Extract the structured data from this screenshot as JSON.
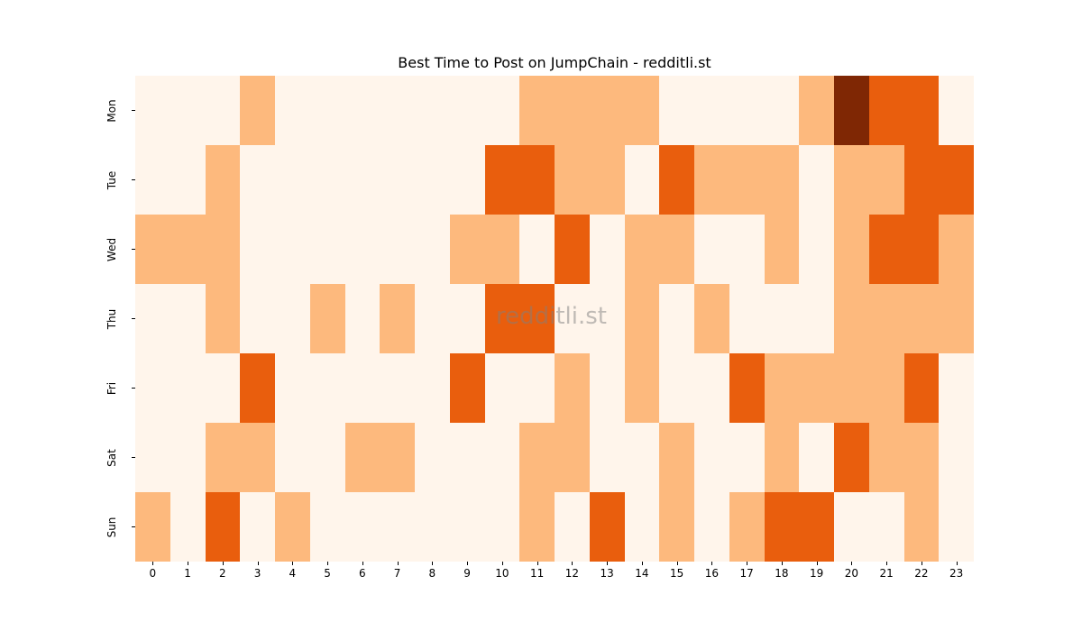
{
  "chart_data": {
    "type": "heatmap",
    "title": "Best Time to Post on JumpChain - redditli.st",
    "xlabel": "",
    "ylabel": "",
    "x": [
      "0",
      "1",
      "2",
      "3",
      "4",
      "5",
      "6",
      "7",
      "8",
      "9",
      "10",
      "11",
      "12",
      "13",
      "14",
      "15",
      "16",
      "17",
      "18",
      "19",
      "20",
      "21",
      "22",
      "23"
    ],
    "y": [
      "Mon",
      "Tue",
      "Wed",
      "Thu",
      "Fri",
      "Sat",
      "Sun"
    ],
    "colormap": "Oranges",
    "level_colors": [
      "#fff5eb",
      "#fdb97d",
      "#e95e0d",
      "#7f2704"
    ],
    "values": [
      [
        0,
        0,
        0,
        1,
        0,
        0,
        0,
        0,
        0,
        0,
        0,
        1,
        1,
        1,
        1,
        0,
        0,
        0,
        0,
        1,
        3,
        2,
        2,
        0
      ],
      [
        0,
        0,
        1,
        0,
        0,
        0,
        0,
        0,
        0,
        0,
        2,
        2,
        1,
        1,
        0,
        2,
        1,
        1,
        1,
        0,
        1,
        1,
        2,
        2
      ],
      [
        1,
        1,
        1,
        0,
        0,
        0,
        0,
        0,
        0,
        1,
        1,
        0,
        2,
        0,
        1,
        1,
        0,
        0,
        1,
        0,
        1,
        2,
        2,
        1
      ],
      [
        0,
        0,
        1,
        0,
        0,
        1,
        0,
        1,
        0,
        0,
        2,
        2,
        0,
        0,
        1,
        0,
        1,
        0,
        0,
        0,
        1,
        1,
        1,
        1
      ],
      [
        0,
        0,
        0,
        2,
        0,
        0,
        0,
        0,
        0,
        2,
        0,
        0,
        1,
        0,
        1,
        0,
        0,
        2,
        1,
        1,
        1,
        1,
        2,
        0
      ],
      [
        0,
        0,
        1,
        1,
        0,
        0,
        1,
        1,
        0,
        0,
        0,
        1,
        1,
        0,
        0,
        1,
        0,
        0,
        1,
        0,
        2,
        1,
        1,
        0
      ],
      [
        1,
        0,
        2,
        0,
        1,
        0,
        0,
        0,
        0,
        0,
        0,
        1,
        0,
        2,
        0,
        1,
        0,
        1,
        2,
        2,
        0,
        0,
        1,
        0
      ]
    ],
    "watermark": "redditli.st",
    "grid": false,
    "colorbar": false
  }
}
